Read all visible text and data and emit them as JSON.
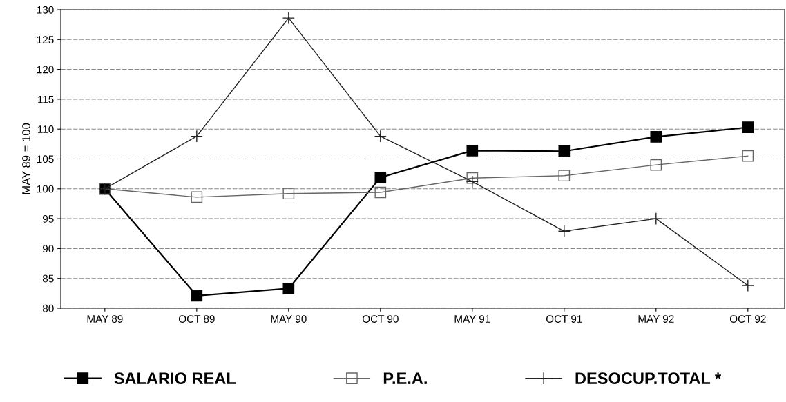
{
  "chart_data": {
    "type": "line",
    "ylabel": "MAY 89 = 100",
    "categories": [
      "MAY 89",
      "OCT 89",
      "MAY 90",
      "OCT 90",
      "MAY 91",
      "OCT 91",
      "MAY 92",
      "OCT 92"
    ],
    "series": [
      {
        "name": "SALARIO REAL",
        "color": "#000000",
        "marker": "square",
        "values": [
          100,
          82.1,
          83.3,
          101.9,
          106.4,
          106.3,
          108.7,
          110.3
        ]
      },
      {
        "name": "P.E.A.",
        "color": "#666666",
        "marker": "square",
        "values": [
          100,
          98.6,
          99.2,
          99.4,
          101.8,
          102.2,
          104.0,
          105.5
        ]
      },
      {
        "name": "DESOCUP.TOTAL *",
        "color": "#222222",
        "marker": "cross",
        "values": [
          100,
          108.8,
          128.6,
          108.8,
          101.2,
          92.9,
          95.0,
          83.8
        ]
      }
    ],
    "ylim": [
      80,
      130
    ],
    "yticks": [
      80,
      85,
      90,
      95,
      100,
      105,
      110,
      115,
      120,
      125,
      130
    ],
    "grid": "y",
    "legend": "bottom"
  }
}
